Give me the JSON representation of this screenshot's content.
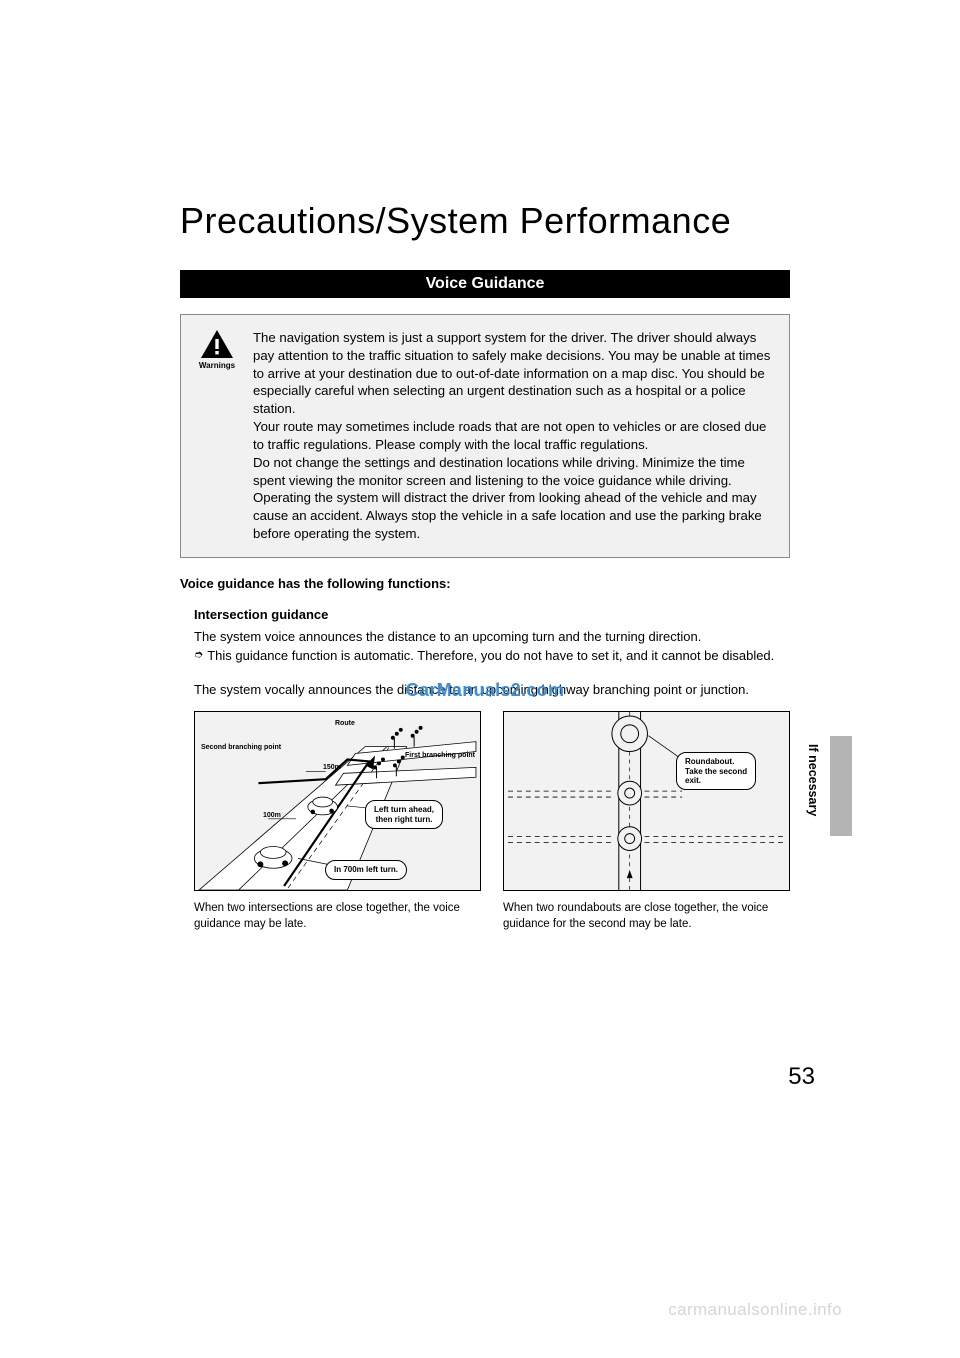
{
  "page": {
    "title": "Precautions/System Performance",
    "section_bar": "Voice Guidance",
    "page_number": "53",
    "side_label": "If necessary",
    "footer_watermark": "carmanualsonline.info",
    "center_watermark": "CarManuals2.com"
  },
  "warning": {
    "label": "Warnings",
    "p1": "The navigation system is just a support system for the driver. The driver should always pay attention to the traffic situation to safely make decisions. You may be unable at times to arrive at your destination due to out-of-date information on a map disc. You should be especially careful when selecting an urgent destination such as a hospital or a police station.",
    "p2": "Your route may sometimes include roads that are not open to vehicles or are closed due to traffic regulations. Please comply with the local traffic regulations.",
    "p3": "Do not change the settings and destination locations while driving. Minimize the time spent viewing the monitor screen and listening to the voice guidance while driving. Operating the system will distract the driver from looking ahead of the vehicle and may cause an accident. Always stop the vehicle in a safe location and use the parking brake before operating the system."
  },
  "content": {
    "lead": "Voice guidance has the following functions:",
    "subhead": "Intersection guidance",
    "body_line1": "The system voice announces the distance to an upcoming turn and the turning direction.",
    "bullet": "This guidance function is automatic. Therefore, you do not have to set it, and it cannot be disabled.",
    "body2": "The system vocally announces the distance to an upcoming highway branching point or junction."
  },
  "figure_left": {
    "labels": {
      "route": "Route",
      "second_branch": "Second branching point",
      "first_branch": "First branching point",
      "dist150": "150m",
      "dist100": "100m"
    },
    "callouts": {
      "c1": "Left turn ahead,\nthen right turn.",
      "c2": "In 700m left turn."
    },
    "caption": "When two intersections are close together, the voice guidance may be late.",
    "colors": {
      "bg": "#f2f2f2",
      "line": "#000000"
    }
  },
  "figure_right": {
    "callout": "Roundabout.\nTake the second\nexit.",
    "caption": "When two roundabouts are close together, the voice guidance for the second may be late.",
    "colors": {
      "bg": "#f2f2f2",
      "line": "#000000"
    }
  },
  "colors": {
    "text": "#000000",
    "bg": "#ffffff",
    "box_bg": "#f1f1f1",
    "box_border": "#8a8a8a",
    "tab": "#b4b4b4",
    "watermark": "#3a8fd6",
    "footer_wm": "#d6d6d6"
  }
}
